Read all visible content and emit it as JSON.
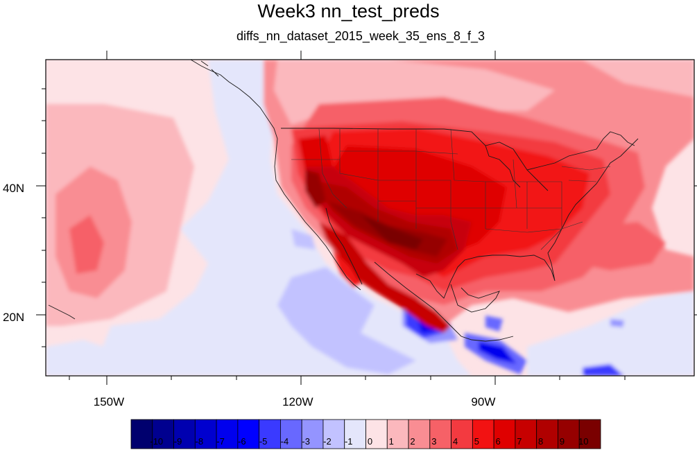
{
  "title": "Week3 nn_test_preds",
  "subtitle": "diffs_nn_dataset_2015_week_35_ens_8_f_3",
  "map": {
    "lon_range": [
      -160,
      -57
    ],
    "lat_range": [
      11,
      60
    ],
    "x_ticks": [
      {
        "lon": -150,
        "label": "150W"
      },
      {
        "lon": -120,
        "label": "120W"
      },
      {
        "lon": -90,
        "label": "90W"
      }
    ],
    "y_ticks": [
      {
        "lat": 40,
        "label": "40N"
      },
      {
        "lat": 20,
        "label": "20N"
      }
    ]
  },
  "colorbar": {
    "labels": [
      "-10",
      "-9",
      "-8",
      "-7",
      "-6",
      "-5",
      "-4",
      "-3",
      "-2",
      "-1",
      "0",
      "1",
      "2",
      "3",
      "4",
      "5",
      "6",
      "7",
      "8",
      "9",
      "10"
    ],
    "colors": [
      "#00006e",
      "#00008f",
      "#0000b0",
      "#0000cf",
      "#0000ee",
      "#0000ff",
      "#3a3aff",
      "#6868ff",
      "#9494ff",
      "#c2c2ff",
      "#e4e6fb",
      "#fde3e6",
      "#fbb8bd",
      "#f98d93",
      "#f66167",
      "#f33a40",
      "#f21212",
      "#df0000",
      "#c70000",
      "#b00000",
      "#960000",
      "#7a0000"
    ]
  }
}
